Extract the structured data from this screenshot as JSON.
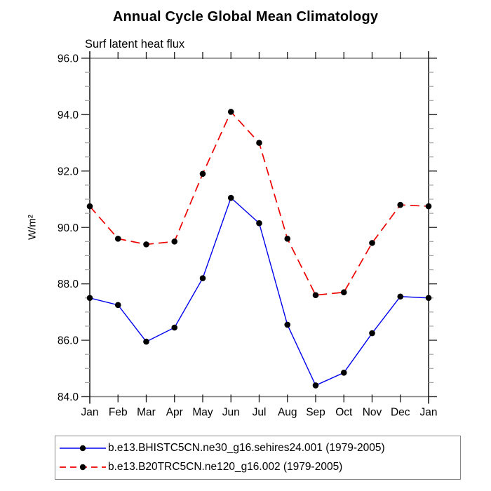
{
  "title": "Annual Cycle Global Mean Climatology",
  "subtitle": "Surf latent heat flux",
  "chart_data": {
    "type": "line",
    "x_categories": [
      "Jan",
      "Feb",
      "Mar",
      "Apr",
      "May",
      "Jun",
      "Jul",
      "Aug",
      "Sep",
      "Oct",
      "Nov",
      "Dec",
      "Jan"
    ],
    "xlabel": "",
    "ylabel": "W/m²",
    "ylim": [
      84.0,
      96.0
    ],
    "ytick_interval": 2.0,
    "ytick_minor_interval": 0.5,
    "ytick_labels": [
      "96.0",
      "94.0",
      "92.0",
      "90.0",
      "88.0",
      "86.0",
      "84.0"
    ],
    "grid": false,
    "legend_position": "bottom",
    "series": [
      {
        "name": "b.e13.BHISTC5CN.ne30_g16.sehires24.001 (1979-2005)",
        "color": "#0000ee",
        "style": "solid",
        "marker": "circle",
        "marker_color": "#000000",
        "values": [
          87.5,
          87.25,
          85.95,
          86.45,
          88.2,
          91.05,
          90.15,
          86.55,
          84.4,
          84.85,
          86.25,
          87.55,
          87.5
        ]
      },
      {
        "name": "b.e13.B20TRC5CN.ne120_g16.002 (1979-2005)",
        "color": "#ee0000",
        "style": "dashed",
        "marker": "circle",
        "marker_color": "#000000",
        "values": [
          90.75,
          89.6,
          89.4,
          89.5,
          91.9,
          94.1,
          93.0,
          89.6,
          87.6,
          87.7,
          89.45,
          90.8,
          90.75
        ]
      }
    ],
    "frame_colors": {
      "horizontal_axis": "#808080",
      "vertical_axis": "#000000",
      "major_tick": "#333333",
      "minor_tick": "#a3a3a3",
      "month_tick": "#1a1a1a"
    }
  }
}
